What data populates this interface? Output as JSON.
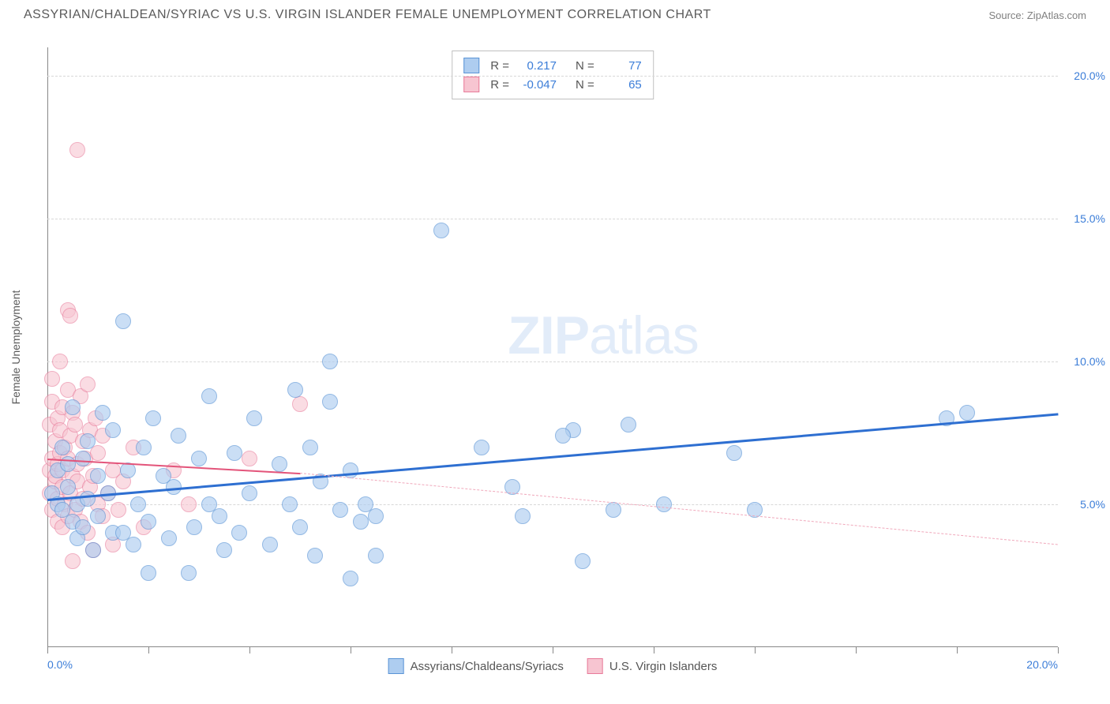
{
  "title": "ASSYRIAN/CHALDEAN/SYRIAC VS U.S. VIRGIN ISLANDER FEMALE UNEMPLOYMENT CORRELATION CHART",
  "source": "Source: ZipAtlas.com",
  "ylabel": "Female Unemployment",
  "watermark_zip": "ZIP",
  "watermark_atlas": "atlas",
  "chart": {
    "type": "scatter",
    "background_color": "#ffffff",
    "grid_color": "#d8d8d8",
    "axis_color": "#888888",
    "xlim": [
      0,
      20
    ],
    "ylim": [
      0,
      21
    ],
    "xtick_positions": [
      0,
      2,
      4,
      6,
      8,
      10,
      12,
      14,
      16,
      18,
      20
    ],
    "xtick_labels": {
      "0": "0.0%",
      "20": "20.0%"
    },
    "ytick_labels": [
      {
        "y": 5,
        "label": "5.0%"
      },
      {
        "y": 10,
        "label": "10.0%"
      },
      {
        "y": 15,
        "label": "15.0%"
      },
      {
        "y": 20,
        "label": "20.0%"
      }
    ],
    "grid_y": [
      5,
      10,
      15,
      20
    ],
    "point_radius": 10,
    "point_stroke_width": 1
  },
  "series": [
    {
      "id": "assyrian",
      "label": "Assyrians/Chaldeans/Syriacs",
      "fill": "#aecdf0",
      "stroke": "#5a94d6",
      "fill_opacity": 0.65,
      "R": "0.217",
      "N": "77",
      "trend": {
        "x1": 0,
        "y1": 5.2,
        "x2": 20,
        "y2": 8.2,
        "color": "#2e6fd1",
        "width": 3,
        "dash": false
      },
      "points": [
        [
          0.1,
          5.4
        ],
        [
          0.2,
          6.2
        ],
        [
          0.2,
          5.0
        ],
        [
          0.3,
          4.8
        ],
        [
          0.3,
          7.0
        ],
        [
          0.4,
          6.4
        ],
        [
          0.4,
          5.6
        ],
        [
          0.5,
          4.4
        ],
        [
          0.5,
          8.4
        ],
        [
          0.6,
          5.0
        ],
        [
          0.6,
          3.8
        ],
        [
          0.7,
          6.6
        ],
        [
          0.7,
          4.2
        ],
        [
          0.8,
          5.2
        ],
        [
          0.8,
          7.2
        ],
        [
          0.9,
          3.4
        ],
        [
          1.0,
          6.0
        ],
        [
          1.0,
          4.6
        ],
        [
          1.1,
          8.2
        ],
        [
          1.2,
          5.4
        ],
        [
          1.3,
          7.6
        ],
        [
          1.3,
          4.0
        ],
        [
          1.5,
          11.4
        ],
        [
          1.5,
          4.0
        ],
        [
          1.6,
          6.2
        ],
        [
          1.7,
          3.6
        ],
        [
          1.8,
          5.0
        ],
        [
          1.9,
          7.0
        ],
        [
          2.0,
          2.6
        ],
        [
          2.0,
          4.4
        ],
        [
          2.1,
          8.0
        ],
        [
          2.3,
          6.0
        ],
        [
          2.4,
          3.8
        ],
        [
          2.5,
          5.6
        ],
        [
          2.6,
          7.4
        ],
        [
          2.8,
          2.6
        ],
        [
          2.9,
          4.2
        ],
        [
          3.0,
          6.6
        ],
        [
          3.2,
          5.0
        ],
        [
          3.2,
          8.8
        ],
        [
          3.4,
          4.6
        ],
        [
          3.5,
          3.4
        ],
        [
          3.7,
          6.8
        ],
        [
          3.8,
          4.0
        ],
        [
          4.0,
          5.4
        ],
        [
          4.1,
          8.0
        ],
        [
          4.4,
          3.6
        ],
        [
          4.6,
          6.4
        ],
        [
          4.8,
          5.0
        ],
        [
          4.9,
          9.0
        ],
        [
          5.0,
          4.2
        ],
        [
          5.2,
          7.0
        ],
        [
          5.3,
          3.2
        ],
        [
          5.4,
          5.8
        ],
        [
          5.6,
          8.6
        ],
        [
          5.6,
          10.0
        ],
        [
          5.8,
          4.8
        ],
        [
          6.0,
          6.2
        ],
        [
          6.0,
          2.4
        ],
        [
          6.2,
          4.4
        ],
        [
          6.3,
          5.0
        ],
        [
          6.5,
          4.6
        ],
        [
          6.5,
          3.2
        ],
        [
          7.8,
          14.6
        ],
        [
          8.6,
          7.0
        ],
        [
          9.2,
          5.6
        ],
        [
          9.4,
          4.6
        ],
        [
          10.4,
          7.6
        ],
        [
          10.6,
          3.0
        ],
        [
          10.2,
          7.4
        ],
        [
          11.2,
          4.8
        ],
        [
          11.5,
          7.8
        ],
        [
          12.2,
          5.0
        ],
        [
          13.6,
          6.8
        ],
        [
          14.0,
          4.8
        ],
        [
          17.8,
          8.0
        ],
        [
          18.2,
          8.2
        ]
      ]
    },
    {
      "id": "usvi",
      "label": "U.S. Virgin Islanders",
      "fill": "#f7c5d1",
      "stroke": "#e87b9a",
      "fill_opacity": 0.6,
      "R": "-0.047",
      "N": "65",
      "trend_solid": {
        "x1": 0,
        "y1": 6.6,
        "x2": 5.0,
        "y2": 6.1,
        "color": "#e3547a",
        "width": 2.5,
        "dash": false
      },
      "trend_dash": {
        "x1": 5.0,
        "y1": 6.1,
        "x2": 20,
        "y2": 3.6,
        "color": "#f0a8bb",
        "width": 1.5,
        "dash": true
      },
      "points": [
        [
          0.05,
          6.2
        ],
        [
          0.05,
          7.8
        ],
        [
          0.05,
          5.4
        ],
        [
          0.1,
          8.6
        ],
        [
          0.1,
          6.6
        ],
        [
          0.1,
          4.8
        ],
        [
          0.1,
          9.4
        ],
        [
          0.15,
          5.8
        ],
        [
          0.15,
          7.2
        ],
        [
          0.15,
          6.0
        ],
        [
          0.2,
          4.4
        ],
        [
          0.2,
          8.0
        ],
        [
          0.2,
          6.4
        ],
        [
          0.2,
          5.2
        ],
        [
          0.25,
          7.6
        ],
        [
          0.25,
          6.8
        ],
        [
          0.25,
          10.0
        ],
        [
          0.3,
          5.6
        ],
        [
          0.3,
          4.2
        ],
        [
          0.3,
          8.4
        ],
        [
          0.3,
          6.2
        ],
        [
          0.35,
          7.0
        ],
        [
          0.35,
          5.0
        ],
        [
          0.4,
          9.0
        ],
        [
          0.4,
          6.6
        ],
        [
          0.4,
          4.6
        ],
        [
          0.4,
          11.8
        ],
        [
          0.45,
          11.6
        ],
        [
          0.45,
          7.4
        ],
        [
          0.45,
          5.4
        ],
        [
          0.5,
          8.2
        ],
        [
          0.5,
          6.0
        ],
        [
          0.5,
          3.0
        ],
        [
          0.55,
          4.8
        ],
        [
          0.55,
          7.8
        ],
        [
          0.6,
          5.8
        ],
        [
          0.6,
          6.4
        ],
        [
          0.6,
          17.4
        ],
        [
          0.65,
          4.4
        ],
        [
          0.65,
          8.8
        ],
        [
          0.7,
          7.2
        ],
        [
          0.7,
          5.2
        ],
        [
          0.75,
          6.6
        ],
        [
          0.8,
          4.0
        ],
        [
          0.8,
          9.2
        ],
        [
          0.85,
          5.6
        ],
        [
          0.85,
          7.6
        ],
        [
          0.9,
          6.0
        ],
        [
          0.9,
          3.4
        ],
        [
          0.95,
          8.0
        ],
        [
          1.0,
          5.0
        ],
        [
          1.0,
          6.8
        ],
        [
          1.1,
          4.6
        ],
        [
          1.1,
          7.4
        ],
        [
          1.2,
          5.4
        ],
        [
          1.3,
          3.6
        ],
        [
          1.3,
          6.2
        ],
        [
          1.4,
          4.8
        ],
        [
          1.5,
          5.8
        ],
        [
          1.7,
          7.0
        ],
        [
          1.9,
          4.2
        ],
        [
          2.5,
          6.2
        ],
        [
          2.8,
          5.0
        ],
        [
          4.0,
          6.6
        ],
        [
          5.0,
          8.5
        ]
      ]
    }
  ],
  "stats_labels": {
    "R": "R =",
    "N": "N ="
  },
  "colors": {
    "text_main": "#5a5a5a",
    "text_value": "#3b7dd8"
  }
}
